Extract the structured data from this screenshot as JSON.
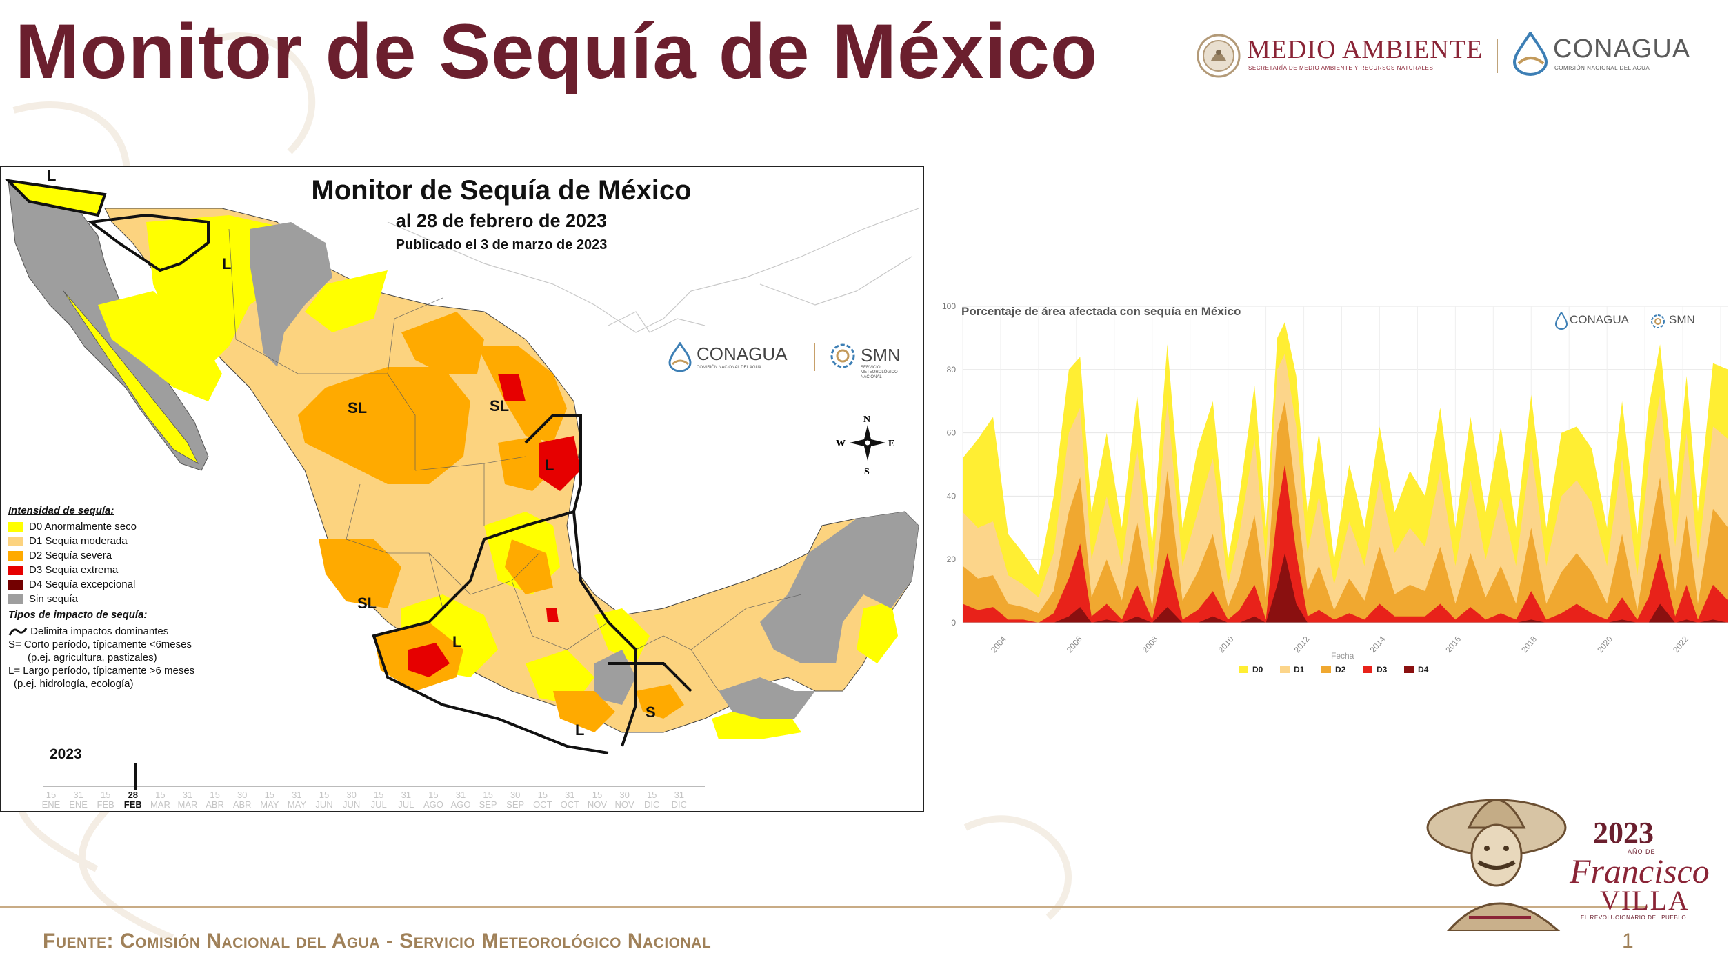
{
  "slide": {
    "title": "Monitor de Sequía de México",
    "page_number": "1",
    "footer": "Fuente: Comisión Nacional del Agua - Servicio Meteorológico Nacional"
  },
  "header_logos": {
    "medio_ambiente": {
      "name": "MEDIO AMBIENTE",
      "subtitle": "SECRETARÍA DE MEDIO AMBIENTE Y RECURSOS NATURALES"
    },
    "conagua": {
      "name": "CONAGUA",
      "subtitle": "COMISIÓN NACIONAL DEL AGUA"
    }
  },
  "map": {
    "title": "Monitor de Sequía de México",
    "date_line": "al 28 de febrero de 2023",
    "published": "Publicado el 3 de marzo de 2023",
    "logos": {
      "conagua": "CONAGUA",
      "conagua_sub": "COMISIÓN NACIONAL DEL AGUA",
      "smn": "SMN",
      "smn_sub": "SERVICIO METEOROLÓGICO NACIONAL"
    },
    "compass": {
      "n": "N",
      "s": "S",
      "e": "E",
      "w": "W"
    },
    "region_labels": [
      "L",
      "L",
      "SL",
      "SL",
      "L",
      "SL",
      "L",
      "L",
      "S"
    ],
    "legend": {
      "intensity_header": "Intensidad de sequía:",
      "items": [
        {
          "label": "D0 Anormalmente seco",
          "color": "#ffff00"
        },
        {
          "label": "D1 Sequía moderada",
          "color": "#fcd37f"
        },
        {
          "label": "D2 Sequía severa",
          "color": "#ffaa00"
        },
        {
          "label": "D3 Sequía extrema",
          "color": "#e60000"
        },
        {
          "label": "D4 Sequía excepcional",
          "color": "#730000"
        },
        {
          "label": "Sin sequía",
          "color": "#9e9e9e"
        }
      ],
      "impact_header": "Tipos de impacto de sequía:",
      "impact_lines": [
        "Delimita impactos dominantes",
        "S= Corto período, típicamente <6meses",
        "(p.ej. agricultura, pastizales)",
        "L= Largo período, típicamente >6 meses",
        "(p.ej. hidrología, ecología)"
      ]
    },
    "timeline": {
      "year": "2023",
      "labels": [
        [
          "15",
          "ENE"
        ],
        [
          "31",
          "ENE"
        ],
        [
          "15",
          "FEB"
        ],
        [
          "28",
          "FEB"
        ],
        [
          "15",
          "MAR"
        ],
        [
          "31",
          "MAR"
        ],
        [
          "15",
          "ABR"
        ],
        [
          "30",
          "ABR"
        ],
        [
          "15",
          "MAY"
        ],
        [
          "31",
          "MAY"
        ],
        [
          "15",
          "JUN"
        ],
        [
          "30",
          "JUN"
        ],
        [
          "15",
          "JUL"
        ],
        [
          "31",
          "JUL"
        ],
        [
          "15",
          "AGO"
        ],
        [
          "31",
          "AGO"
        ],
        [
          "15",
          "SEP"
        ],
        [
          "30",
          "SEP"
        ],
        [
          "15",
          "OCT"
        ],
        [
          "31",
          "OCT"
        ],
        [
          "15",
          "NOV"
        ],
        [
          "30",
          "NOV"
        ],
        [
          "15",
          "DIC"
        ],
        [
          "31",
          "DIC"
        ]
      ],
      "current_index": 3
    }
  },
  "chart_data": {
    "type": "area",
    "title": "Porcentaje de área afectada con sequía en México",
    "xlabel": "Fecha",
    "ylabel": "",
    "ylim": [
      0,
      100
    ],
    "xlim": [
      2003,
      2023.2
    ],
    "y_ticks": [
      0,
      20,
      40,
      60,
      80,
      100
    ],
    "x_ticks": [
      "2004",
      "2006",
      "2008",
      "2010",
      "2012",
      "2014",
      "2016",
      "2018",
      "2020",
      "2022"
    ],
    "stacked": false,
    "grid": true,
    "legend_position": "bottom",
    "x": [
      2003.0,
      2003.4,
      2003.8,
      2004.2,
      2004.6,
      2005.0,
      2005.4,
      2005.8,
      2006.1,
      2006.4,
      2006.8,
      2007.2,
      2007.6,
      2008.0,
      2008.4,
      2008.8,
      2009.2,
      2009.6,
      2010.0,
      2010.3,
      2010.7,
      2011.0,
      2011.3,
      2011.5,
      2011.8,
      2012.1,
      2012.4,
      2012.8,
      2013.2,
      2013.6,
      2014.0,
      2014.4,
      2014.8,
      2015.2,
      2015.6,
      2016.0,
      2016.4,
      2016.8,
      2017.2,
      2017.6,
      2018.0,
      2018.4,
      2018.8,
      2019.2,
      2019.6,
      2020.0,
      2020.4,
      2020.8,
      2021.1,
      2021.4,
      2021.8,
      2022.1,
      2022.4,
      2022.8,
      2023.2
    ],
    "series": [
      {
        "name": "D0",
        "color": "#ffee33",
        "values": [
          52,
          58,
          65,
          28,
          22,
          15,
          40,
          80,
          84,
          35,
          60,
          30,
          72,
          25,
          88,
          30,
          55,
          70,
          20,
          40,
          75,
          30,
          90,
          95,
          78,
          35,
          60,
          20,
          50,
          30,
          62,
          35,
          48,
          40,
          68,
          30,
          65,
          35,
          62,
          30,
          72,
          30,
          60,
          62,
          55,
          30,
          70,
          28,
          68,
          88,
          40,
          78,
          35,
          82,
          80
        ]
      },
      {
        "name": "D1",
        "color": "#fcd58a",
        "values": [
          35,
          30,
          32,
          15,
          12,
          8,
          22,
          60,
          68,
          20,
          40,
          18,
          55,
          14,
          70,
          18,
          35,
          52,
          12,
          28,
          58,
          20,
          80,
          85,
          62,
          22,
          40,
          12,
          32,
          18,
          45,
          22,
          30,
          24,
          48,
          18,
          45,
          20,
          40,
          18,
          55,
          18,
          40,
          45,
          38,
          18,
          52,
          15,
          50,
          72,
          24,
          60,
          20,
          62,
          58
        ]
      },
      {
        "name": "D2",
        "color": "#f0a830",
        "values": [
          18,
          14,
          15,
          6,
          5,
          3,
          10,
          35,
          46,
          8,
          20,
          7,
          32,
          5,
          48,
          7,
          16,
          28,
          5,
          14,
          34,
          8,
          60,
          70,
          40,
          10,
          18,
          4,
          14,
          7,
          24,
          9,
          12,
          10,
          24,
          6,
          22,
          8,
          18,
          6,
          30,
          6,
          16,
          22,
          16,
          6,
          28,
          4,
          26,
          46,
          10,
          34,
          6,
          36,
          30
        ]
      },
      {
        "name": "D3",
        "color": "#e8221a",
        "values": [
          6,
          4,
          5,
          1,
          1,
          0,
          3,
          14,
          25,
          2,
          6,
          1,
          12,
          1,
          22,
          1,
          4,
          10,
          1,
          4,
          12,
          1,
          35,
          50,
          22,
          2,
          4,
          1,
          3,
          1,
          6,
          2,
          2,
          2,
          6,
          1,
          5,
          1,
          3,
          1,
          10,
          1,
          3,
          6,
          3,
          1,
          8,
          1,
          8,
          22,
          2,
          12,
          1,
          12,
          7
        ]
      },
      {
        "name": "D4",
        "color": "#8a1010",
        "values": [
          0,
          0,
          0,
          0,
          0,
          0,
          0,
          2,
          5,
          0,
          1,
          0,
          2,
          0,
          5,
          0,
          0,
          2,
          0,
          0,
          2,
          0,
          12,
          22,
          6,
          0,
          0,
          0,
          0,
          0,
          0,
          0,
          0,
          0,
          0,
          0,
          0,
          0,
          0,
          0,
          1,
          0,
          0,
          0,
          0,
          0,
          1,
          0,
          0,
          6,
          0,
          1,
          0,
          1,
          0
        ]
      }
    ],
    "logos": {
      "conagua": "CONAGUA",
      "smn": "SMN"
    }
  },
  "commemorative": {
    "year": "2023",
    "ano_de": "AÑO DE",
    "name1": "Francisco",
    "name2": "VILLA",
    "tagline": "EL REVOLUCIONARIO DEL PUEBLO"
  },
  "colors": {
    "title": "#6b1f2e",
    "footer": "#a08159",
    "rule": "#c8ab85"
  }
}
